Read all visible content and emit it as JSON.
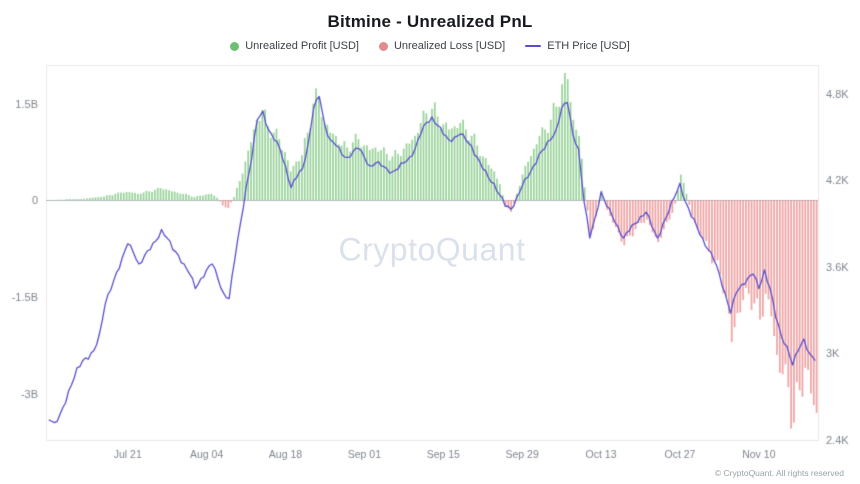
{
  "header": {
    "title": "Bitmine - Unrealized PnL"
  },
  "legend": [
    {
      "label": "Unrealized Profit [USD]",
      "color": "#6fbf73",
      "marker": "circle"
    },
    {
      "label": "Unrealized Loss [USD]",
      "color": "#e08c8c",
      "marker": "circle"
    },
    {
      "label": "ETH Price [USD]",
      "color": "#574fd0",
      "marker": "line"
    }
  ],
  "watermark": "CryptoQuant",
  "footer": {
    "copyright": "© CryptoQuant. All rights reserved"
  },
  "chart_data": {
    "type": "bar+line",
    "title": "Bitmine - Unrealized PnL",
    "x_tick_labels": [
      "Jul 21",
      "Aug 04",
      "Aug 18",
      "Sep 01",
      "Sep 15",
      "Sep 29",
      "Oct 13",
      "Oct 27",
      "Nov 10"
    ],
    "x_tick_indices": [
      14,
      28,
      42,
      56,
      70,
      84,
      98,
      112,
      126
    ],
    "left_axis": {
      "title": "Unrealized PnL [USD, billions]",
      "ticks": [
        {
          "v": 1.5,
          "label": "1.5B"
        },
        {
          "v": 0,
          "label": "0"
        },
        {
          "v": -1.5,
          "label": "-1.5B"
        },
        {
          "v": -3,
          "label": "-3B"
        }
      ],
      "range": [
        -3.72,
        2.1
      ]
    },
    "right_axis": {
      "title": "ETH Price [USD, thousands]",
      "ticks": [
        {
          "v": 4.8,
          "label": "4.8K"
        },
        {
          "v": 4.2,
          "label": "4.2K"
        },
        {
          "v": 3.6,
          "label": "3.6K"
        },
        {
          "v": 3.0,
          "label": "3K"
        },
        {
          "v": 2.4,
          "label": "2.4K"
        }
      ],
      "range": [
        2.4,
        5.0
      ]
    },
    "colors": {
      "profit_bar": "rgba(126,198,126,0.78)",
      "loss_bar": "rgba(233,128,128,0.72)",
      "price_line": "#574fd0",
      "zero_line": "#b9bec7",
      "frame": "#e8eaed",
      "tick_text": "#7f8691"
    },
    "legend_position": "top",
    "grid": false,
    "series": [
      {
        "name": "Unrealized PnL [USD]",
        "unit": "B",
        "axis": "left",
        "style": "bar",
        "values": [
          0,
          0,
          0.01,
          0.01,
          0.02,
          0.02,
          0.02,
          0.03,
          0.04,
          0.05,
          0.06,
          0.08,
          0.1,
          0.12,
          0.13,
          0.12,
          0.1,
          0.12,
          0.14,
          0.16,
          0.19,
          0.17,
          0.14,
          0.12,
          0.1,
          0.08,
          0.05,
          0.07,
          0.09,
          0.1,
          0.04,
          -0.08,
          -0.12,
          0.05,
          0.3,
          0.6,
          0.9,
          1.25,
          1.4,
          1.15,
          1.05,
          0.95,
          0.75,
          0.45,
          0.6,
          0.7,
          1.05,
          1.5,
          1.62,
          1.2,
          1.05,
          1.0,
          0.85,
          0.82,
          0.9,
          0.95,
          0.85,
          0.78,
          0.82,
          0.78,
          0.72,
          0.68,
          0.72,
          0.8,
          0.88,
          1.0,
          1.2,
          1.35,
          1.42,
          1.3,
          1.18,
          1.1,
          1.15,
          1.2,
          1.1,
          1.0,
          0.85,
          0.68,
          0.55,
          0.45,
          0.25,
          -0.1,
          -0.18,
          0.1,
          0.4,
          0.6,
          0.8,
          1.0,
          1.1,
          1.25,
          1.45,
          1.8,
          1.88,
          1.25,
          1.0,
          0.2,
          -0.55,
          -0.25,
          0.15,
          -0.15,
          -0.35,
          -0.5,
          -0.7,
          -0.55,
          -0.45,
          -0.35,
          -0.3,
          -0.5,
          -0.65,
          -0.45,
          -0.3,
          -0.05,
          0.4,
          0.1,
          -0.25,
          -0.45,
          -0.6,
          -0.8,
          -0.95,
          -1.15,
          -1.5,
          -2.2,
          -1.75,
          -1.55,
          -1.45,
          -1.6,
          -1.85,
          -1.45,
          -1.8,
          -2.4,
          -2.7,
          -2.9,
          -3.45,
          -2.95,
          -2.6,
          -3.0,
          -3.3
        ]
      },
      {
        "name": "ETH Price [USD]",
        "unit": "K",
        "axis": "right",
        "style": "line",
        "values": [
          2.54,
          2.52,
          2.58,
          2.66,
          2.78,
          2.9,
          2.95,
          2.96,
          3.02,
          3.14,
          3.34,
          3.44,
          3.56,
          3.66,
          3.76,
          3.7,
          3.62,
          3.68,
          3.72,
          3.78,
          3.86,
          3.8,
          3.72,
          3.68,
          3.62,
          3.55,
          3.45,
          3.52,
          3.58,
          3.62,
          3.52,
          3.42,
          3.38,
          3.65,
          3.9,
          4.15,
          4.35,
          4.62,
          4.68,
          4.55,
          4.48,
          4.42,
          4.3,
          4.15,
          4.22,
          4.28,
          4.45,
          4.7,
          4.78,
          4.58,
          4.48,
          4.44,
          4.38,
          4.36,
          4.4,
          4.42,
          4.36,
          4.3,
          4.32,
          4.3,
          4.28,
          4.26,
          4.28,
          4.32,
          4.36,
          4.42,
          4.52,
          4.6,
          4.64,
          4.58,
          4.52,
          4.48,
          4.5,
          4.52,
          4.48,
          4.44,
          4.36,
          4.28,
          4.22,
          4.18,
          4.1,
          4.02,
          4.0,
          4.08,
          4.16,
          4.22,
          4.3,
          4.38,
          4.42,
          4.48,
          4.55,
          4.7,
          4.74,
          4.52,
          4.42,
          4.05,
          3.8,
          3.95,
          4.12,
          4.02,
          3.95,
          3.88,
          3.8,
          3.85,
          3.9,
          3.95,
          3.98,
          3.88,
          3.8,
          3.9,
          3.98,
          4.08,
          4.18,
          4.05,
          3.95,
          3.88,
          3.8,
          3.72,
          3.65,
          3.55,
          3.42,
          3.28,
          3.42,
          3.48,
          3.52,
          3.55,
          3.45,
          3.58,
          3.45,
          3.25,
          3.12,
          3.05,
          2.92,
          3.02,
          3.1,
          3.0,
          2.95
        ]
      }
    ]
  }
}
